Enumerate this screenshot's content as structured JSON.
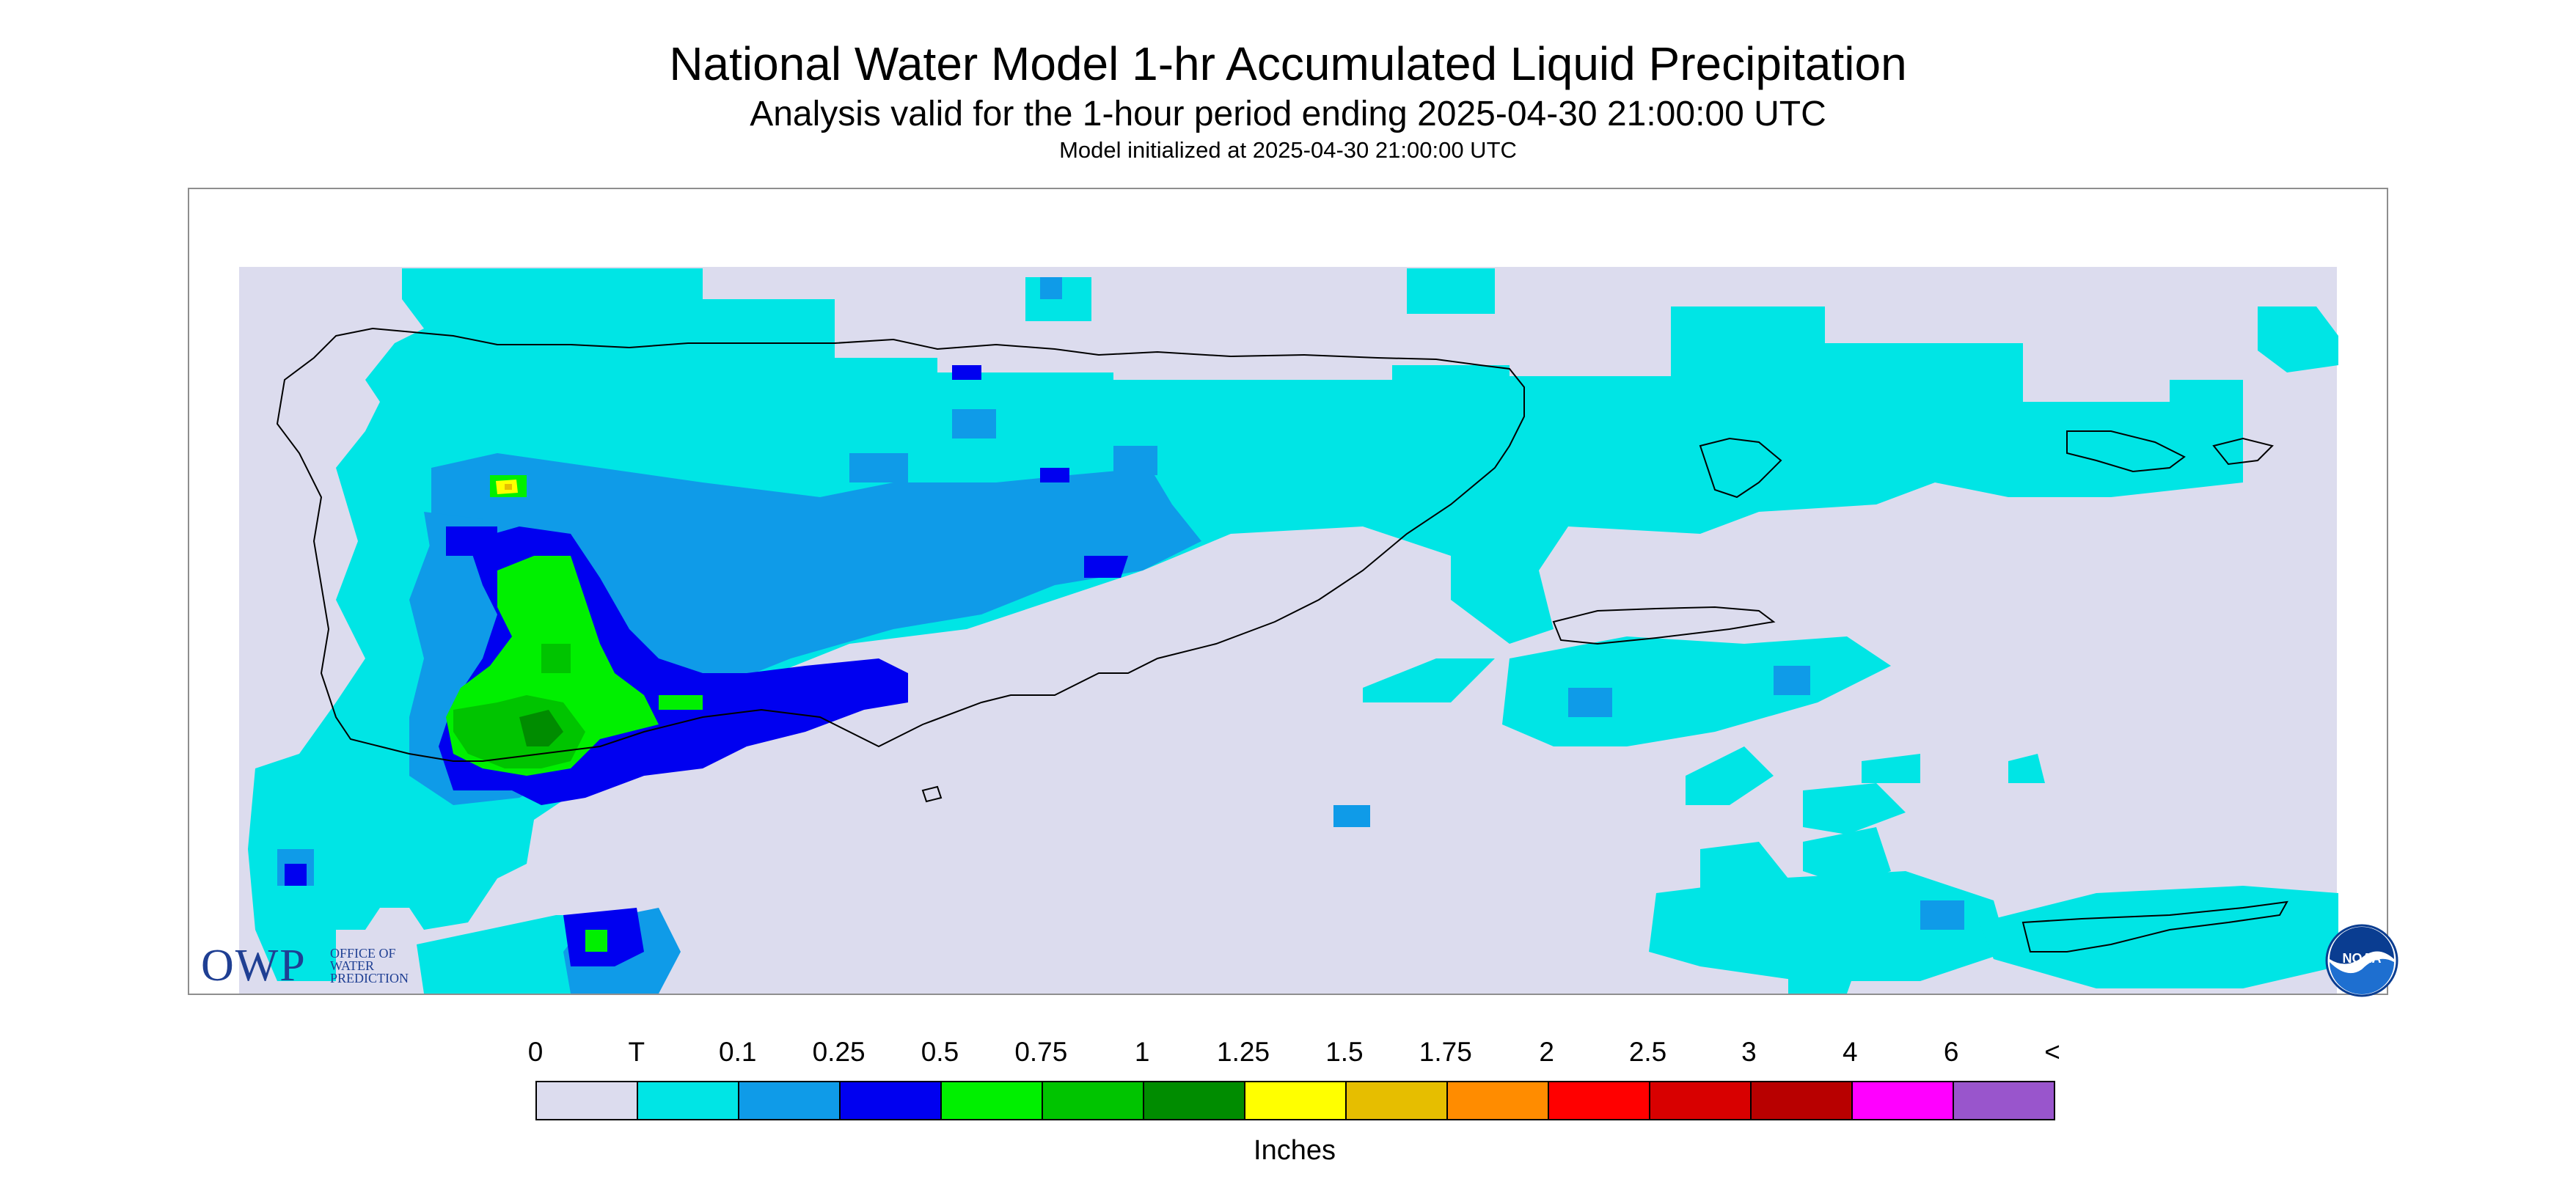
{
  "titles": {
    "main": "National Water Model 1-hr Accumulated Liquid Precipitation",
    "sub": "Analysis valid for the 1-hour period ending 2025-04-30 21:00:00 UTC",
    "init": "Model initialized at 2025-04-30 21:00:00 UTC"
  },
  "logos": {
    "owp_letters": "OWP",
    "owp_words": "OFFICE OF\nWATER\nPREDICTION",
    "noaa": "NOAA"
  },
  "legend": {
    "units": "Inches",
    "ticks": [
      "0",
      "T",
      "0.1",
      "0.25",
      "0.5",
      "0.75",
      "1",
      "1.25",
      "1.5",
      "1.75",
      "2",
      "2.5",
      "3",
      "4",
      "6",
      "<"
    ],
    "colors": [
      "#dcdcee",
      "#00e5e5",
      "#0f9be8",
      "#0000f0",
      "#00f000",
      "#00c400",
      "#008c00",
      "#ffff00",
      "#e6be00",
      "#ff8c00",
      "#ff0000",
      "#d80000",
      "#b80000",
      "#ff00ff",
      "#9955cc"
    ]
  },
  "map": {
    "region": "Puerto Rico and U.S. Virgin Islands",
    "background_color": "#dcdcee",
    "coast_color": "#000000"
  }
}
